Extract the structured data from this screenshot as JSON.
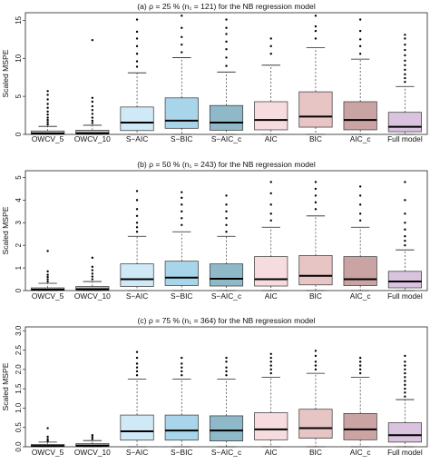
{
  "chart_data": [
    {
      "type": "box",
      "title": "(a) ρ = 25 % (n₁ = 121) for the NB regression model",
      "ylabel": "Scaled MSPE",
      "ylim": [
        0,
        16
      ],
      "yticks": [
        "0",
        "5",
        "10",
        "15"
      ],
      "grid": false,
      "categories": [
        "OWCV_5",
        "OWCV_10",
        "S−AIC",
        "S−BIC",
        "S−AIC_c",
        "AIC",
        "BIC",
        "AIC_c",
        "Full model"
      ],
      "colors": [
        "#bdbdbd",
        "#bdbdbd",
        "#cfe9f6",
        "#a9d5ea",
        "#8fb9c9",
        "#f6dcdf",
        "#e8c5c5",
        "#caa3a3",
        "#d9c3de"
      ],
      "boxes": [
        {
          "min": 0,
          "q1": 0.02,
          "median": 0.12,
          "q3": 0.45,
          "max": 1.05,
          "outliers": [
            1.3,
            1.6,
            1.9,
            2.2,
            2.6,
            3.0,
            3.5,
            4.0,
            4.6,
            5.2,
            5.7
          ]
        },
        {
          "min": 0,
          "q1": 0.03,
          "median": 0.15,
          "q3": 0.55,
          "max": 1.2,
          "outliers": [
            1.5,
            1.8,
            2.2,
            2.7,
            3.2,
            3.7,
            4.3,
            4.8,
            12.4
          ]
        },
        {
          "min": 0,
          "q1": 0.5,
          "median": 1.55,
          "q3": 3.6,
          "max": 8.1,
          "outliers": [
            8.9,
            9.6,
            10.6,
            11.6,
            12.6,
            13.5,
            15.1
          ]
        },
        {
          "min": 0,
          "q1": 0.8,
          "median": 1.8,
          "q3": 4.8,
          "max": 10.1,
          "outliers": [
            10.8,
            11.8,
            12.8,
            14.0,
            15.6
          ]
        },
        {
          "min": 0,
          "q1": 0.55,
          "median": 1.55,
          "q3": 3.8,
          "max": 8.2,
          "outliers": [
            9.0,
            10.1,
            11.2,
            12.2,
            13.2,
            14.0,
            15.1
          ]
        },
        {
          "min": 0,
          "q1": 0.6,
          "median": 1.9,
          "q3": 4.3,
          "max": 9.1,
          "outliers": [
            10.6,
            11.6,
            12.6
          ]
        },
        {
          "min": 0,
          "q1": 0.95,
          "median": 2.35,
          "q3": 5.6,
          "max": 11.4,
          "outliers": [
            12.6,
            13.6,
            14.2,
            15.6
          ]
        },
        {
          "min": 0,
          "q1": 0.6,
          "median": 1.9,
          "q3": 4.3,
          "max": 9.9,
          "outliers": [
            10.6,
            11.6,
            12.5,
            13.6,
            15.1
          ]
        },
        {
          "min": 0,
          "q1": 0.35,
          "median": 1.0,
          "q3": 2.9,
          "max": 6.3,
          "outliers": [
            6.9,
            7.4,
            7.9,
            8.5,
            9.1,
            9.7,
            10.4,
            11.1,
            11.8,
            12.6,
            13.1
          ]
        }
      ]
    },
    {
      "type": "box",
      "title": "(b) ρ = 50 % (n₁ = 243) for the NB regression model",
      "ylabel": "Scaled MSPE",
      "ylim": [
        0,
        5.3
      ],
      "yticks": [
        "0",
        "1",
        "2",
        "3",
        "4",
        "5"
      ],
      "grid": false,
      "categories": [
        "OWCV_5",
        "OWCV_10",
        "S−AIC",
        "S−BIC",
        "S−AIC_c",
        "AIC",
        "BIC",
        "AIC_c",
        "Full model"
      ],
      "colors": [
        "#bdbdbd",
        "#bdbdbd",
        "#cfe9f6",
        "#a9d5ea",
        "#8fb9c9",
        "#f6dcdf",
        "#e8c5c5",
        "#caa3a3",
        "#d9c3de"
      ],
      "boxes": [
        {
          "min": 0,
          "q1": 0.01,
          "median": 0.04,
          "q3": 0.12,
          "max": 0.32,
          "outliers": [
            0.4,
            0.5,
            0.6,
            0.7,
            0.85,
            1.75
          ]
        },
        {
          "min": 0,
          "q1": 0.02,
          "median": 0.06,
          "q3": 0.18,
          "max": 0.4,
          "outliers": [
            0.5,
            0.62,
            0.75,
            0.9,
            1.05,
            1.45
          ]
        },
        {
          "min": 0,
          "q1": 0.18,
          "median": 0.5,
          "q3": 1.18,
          "max": 2.4,
          "outliers": [
            2.6,
            2.8,
            3.0,
            3.3,
            3.6,
            4.0,
            4.4
          ]
        },
        {
          "min": 0,
          "q1": 0.22,
          "median": 0.57,
          "q3": 1.3,
          "max": 2.6,
          "outliers": [
            2.9,
            3.2,
            3.5,
            3.8,
            4.1,
            4.35
          ]
        },
        {
          "min": 0,
          "q1": 0.2,
          "median": 0.52,
          "q3": 1.18,
          "max": 2.4,
          "outliers": [
            2.6,
            2.9,
            3.2,
            3.5,
            3.8,
            4.2
          ]
        },
        {
          "min": 0,
          "q1": 0.2,
          "median": 0.5,
          "q3": 1.5,
          "max": 2.8,
          "outliers": [
            3.1,
            3.4,
            3.8,
            4.3,
            4.8
          ]
        },
        {
          "min": 0,
          "q1": 0.25,
          "median": 0.65,
          "q3": 1.55,
          "max": 3.3,
          "outliers": [
            3.6,
            3.9,
            4.2,
            4.5,
            4.8
          ]
        },
        {
          "min": 0,
          "q1": 0.22,
          "median": 0.5,
          "q3": 1.5,
          "max": 2.8,
          "outliers": [
            3.1,
            3.4,
            3.8,
            4.2,
            4.6
          ]
        },
        {
          "min": 0,
          "q1": 0.12,
          "median": 0.4,
          "q3": 0.85,
          "max": 1.8,
          "outliers": [
            2.0,
            2.2,
            2.4,
            2.7,
            3.0,
            3.4,
            4.0,
            4.8
          ]
        }
      ]
    },
    {
      "type": "box",
      "title": "(c) ρ = 75 % (n₁ = 364) for the NB regression model",
      "ylabel": "Scaled MSPE",
      "ylim": [
        0,
        3.1
      ],
      "yticks": [
        "0.0",
        "0.5",
        "1.0",
        "1.5",
        "2.0",
        "2.5",
        "3.0"
      ],
      "grid": false,
      "categories": [
        "OWCV_5",
        "OWCV_10",
        "S−AIC",
        "S−BIC",
        "S−AIC_c",
        "AIC",
        "BIC",
        "AIC_c",
        "Full model"
      ],
      "colors": [
        "#bdbdbd",
        "#bdbdbd",
        "#cfe9f6",
        "#a9d5ea",
        "#8fb9c9",
        "#f6dcdf",
        "#e8c5c5",
        "#caa3a3",
        "#d9c3de"
      ],
      "boxes": [
        {
          "min": 0,
          "q1": 0.01,
          "median": 0.02,
          "q3": 0.06,
          "max": 0.12,
          "outliers": [
            0.15,
            0.2,
            0.26,
            0.48
          ]
        },
        {
          "min": 0,
          "q1": 0.01,
          "median": 0.03,
          "q3": 0.08,
          "max": 0.16,
          "outliers": [
            0.2,
            0.25,
            0.3
          ]
        },
        {
          "min": 0,
          "q1": 0.17,
          "median": 0.4,
          "q3": 0.82,
          "max": 1.75,
          "outliers": [
            1.85,
            1.95,
            2.05,
            2.15,
            2.3,
            2.45
          ]
        },
        {
          "min": 0,
          "q1": 0.17,
          "median": 0.42,
          "q3": 0.82,
          "max": 1.75,
          "outliers": [
            1.85,
            1.95,
            2.05,
            2.15,
            2.3
          ]
        },
        {
          "min": 0,
          "q1": 0.15,
          "median": 0.42,
          "q3": 0.8,
          "max": 1.75,
          "outliers": [
            1.85,
            1.95,
            2.05,
            2.2,
            2.3
          ]
        },
        {
          "min": 0,
          "q1": 0.18,
          "median": 0.45,
          "q3": 0.88,
          "max": 1.8,
          "outliers": [
            1.9,
            2.0,
            2.1,
            2.2,
            2.3,
            2.4
          ]
        },
        {
          "min": 0,
          "q1": 0.22,
          "median": 0.48,
          "q3": 0.97,
          "max": 1.9,
          "outliers": [
            2.0,
            2.1,
            2.2,
            2.35,
            2.48
          ]
        },
        {
          "min": 0,
          "q1": 0.18,
          "median": 0.45,
          "q3": 0.86,
          "max": 1.8,
          "outliers": [
            1.9,
            2.0,
            2.1,
            2.2,
            2.3
          ]
        },
        {
          "min": 0,
          "q1": 0.12,
          "median": 0.3,
          "q3": 0.62,
          "max": 1.22,
          "outliers": [
            1.3,
            1.4,
            1.5,
            1.6,
            1.7,
            1.8,
            1.9,
            2.0,
            2.1,
            2.2,
            2.35
          ]
        }
      ]
    }
  ]
}
